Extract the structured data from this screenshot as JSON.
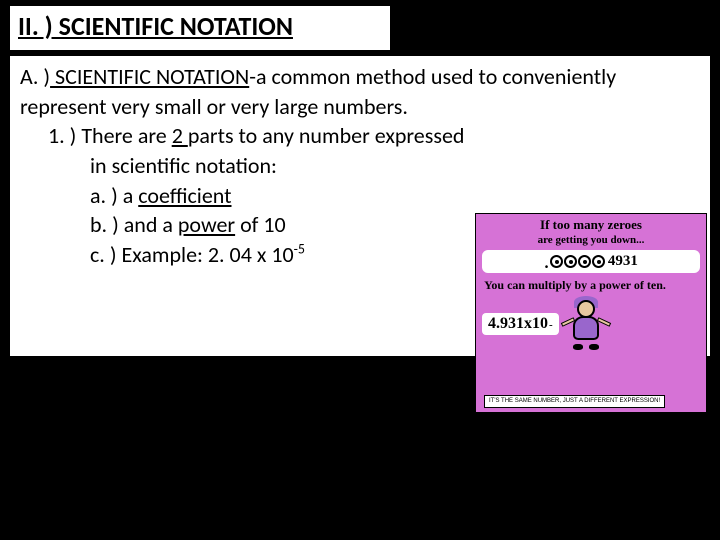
{
  "title": "II. )  SCIENTIFIC NOTATION",
  "definition": {
    "prefix": "A. )",
    "term": " SCIENTIFIC NOTATION",
    "rest": "-a common method used to conveniently represent very small or very large numbers."
  },
  "point1": {
    "prefix": "1. )  There are ",
    "underlined": "2 ",
    "rest": "parts to any number expressed"
  },
  "point1b": "in scientific notation:",
  "sub_a": {
    "prefix": "a. )  a ",
    "underlined": "coefficient"
  },
  "sub_b": {
    "prefix": "b. )  and a ",
    "underlined": "power",
    "rest": " of 10"
  },
  "sub_c": {
    "prefix": "c. )  Example:    2. 04 x 10",
    "sup": "-5"
  },
  "cartoon": {
    "line1": "If too many zeroes",
    "line2": "are getting you down...",
    "digits": "4931",
    "line3": "You can multiply by a power of ten.",
    "formula_main": "4.931x10",
    "formula_exp": "-",
    "sign_text": "IT'S THE SAME NUMBER, JUST A DIFFERENT EXPRESSION!",
    "colors": {
      "bg": "#d672d6",
      "bubble": "#ffffff",
      "hair": "#9966cc",
      "skin": "#e8c8a0"
    }
  }
}
